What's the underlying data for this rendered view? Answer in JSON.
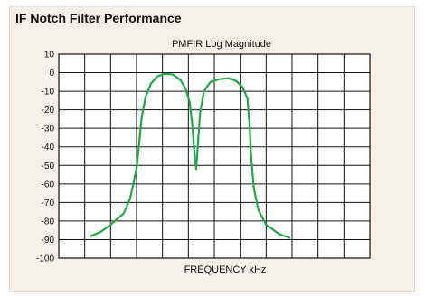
{
  "panel_title": "IF Notch Filter Performance",
  "chart_data": {
    "type": "line",
    "title": "PMFIR  Log Magnitude",
    "xlabel": "FREQUENCY  kHz",
    "ylabel": "",
    "ylim": [
      -100,
      10
    ],
    "yticks": [
      10,
      0,
      -10,
      -20,
      -30,
      -40,
      -50,
      -60,
      -70,
      -80,
      -90,
      -100
    ],
    "x_divisions": 12,
    "grid": true,
    "line_color": "#22a84a",
    "series": [
      {
        "name": "",
        "points": [
          [
            1.25,
            -88
          ],
          [
            1.6,
            -86
          ],
          [
            2.0,
            -82
          ],
          [
            2.5,
            -76
          ],
          [
            2.75,
            -68
          ],
          [
            3.0,
            -52
          ],
          [
            3.1,
            -38
          ],
          [
            3.2,
            -24
          ],
          [
            3.35,
            -13
          ],
          [
            3.55,
            -6
          ],
          [
            3.8,
            -2
          ],
          [
            4.1,
            -0.5
          ],
          [
            4.4,
            -1
          ],
          [
            4.7,
            -4
          ],
          [
            4.9,
            -9
          ],
          [
            5.05,
            -16
          ],
          [
            5.15,
            -28
          ],
          [
            5.25,
            -46
          ],
          [
            5.3,
            -52
          ],
          [
            5.35,
            -42
          ],
          [
            5.45,
            -22
          ],
          [
            5.6,
            -10
          ],
          [
            5.85,
            -5
          ],
          [
            6.2,
            -3.5
          ],
          [
            6.55,
            -3
          ],
          [
            6.85,
            -4.5
          ],
          [
            7.1,
            -8
          ],
          [
            7.28,
            -14
          ],
          [
            7.36,
            -28
          ],
          [
            7.42,
            -45
          ],
          [
            7.52,
            -62
          ],
          [
            7.7,
            -74
          ],
          [
            8.0,
            -82
          ],
          [
            8.5,
            -87
          ],
          [
            8.9,
            -89
          ]
        ]
      }
    ]
  }
}
